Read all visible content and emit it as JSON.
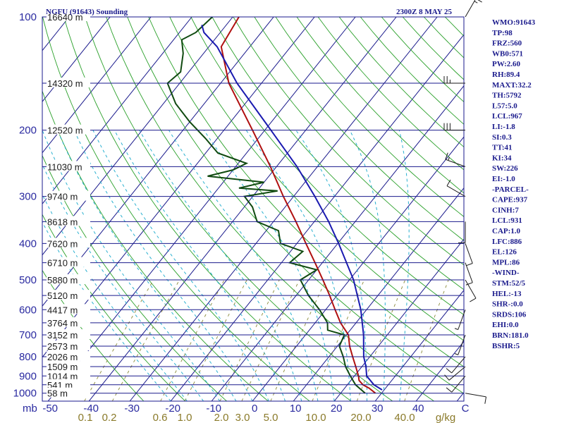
{
  "header": {
    "station": "NGFU (91643) Sounding",
    "time": "2300Z  8 MAY 25"
  },
  "indices": [
    "WMO:91643",
    "TP:98",
    "FRZ:560",
    "WB0:571",
    "PW:2.60",
    "RH:89.4",
    "MAXT:32.2",
    "TH:5792",
    "L57:5.0",
    "LCL:967",
    "LI:-1.8",
    "SI:0.3",
    "TT:41",
    "KI:34",
    "SW:226",
    "EI:-1.0",
    "-PARCEL-",
    "CAPE:937",
    "CINH:7",
    "LCL:931",
    "CAP:1.0",
    "LFC:886",
    "EL:126",
    "MPL:86",
    "-WIND-",
    "STM:52/5",
    "HEL:-13",
    "SHR-:0.0",
    "SRDS:106",
    "EHI:0.0",
    "BRN:181.0",
    "BSHR:5"
  ],
  "colors": {
    "isobar": "#1a1a8c",
    "isotherm": "#1a1a8c",
    "dry_adiabat": "#2aa02a",
    "moist_adiabat": "#2ab0d0",
    "mixing_ratio": "#8a8a3a",
    "temperature": "#b01010",
    "dewpoint": "#104a10",
    "parcel": "#1a1ab0",
    "text": "#1a1a8c"
  },
  "chart_data": {
    "type": "line",
    "title": "NGFU (91643) Sounding",
    "axis_unit_pressure": "mb",
    "axis_unit_mixing_ratio": "g/kg",
    "pressure_levels": [
      100,
      200,
      300,
      400,
      500,
      600,
      700,
      800,
      900,
      1000
    ],
    "temperature_ticks": [
      -50,
      -40,
      -30,
      -20,
      -10,
      0,
      10,
      20,
      30,
      40
    ],
    "temperature_end_label": "C",
    "mixing_ratio_ticks": [
      "0.1",
      "0.2",
      "0.6",
      "1.0",
      "2.0",
      "3.0",
      "5.0",
      "10.0",
      "20.0",
      "40.0"
    ],
    "height_labels": [
      {
        "p": 100,
        "label": "16640 m"
      },
      {
        "p": 150,
        "label": "14320 m"
      },
      {
        "p": 200,
        "label": "12520 m"
      },
      {
        "p": 250,
        "label": "11030 m"
      },
      {
        "p": 300,
        "label": "9740 m"
      },
      {
        "p": 350,
        "label": "8618 m"
      },
      {
        "p": 400,
        "label": "7620 m"
      },
      {
        "p": 450,
        "label": "6710 m"
      },
      {
        "p": 500,
        "label": "5880 m"
      },
      {
        "p": 550,
        "label": "5120 m"
      },
      {
        "p": 600,
        "label": "4417 m"
      },
      {
        "p": 650,
        "label": "3764 m"
      },
      {
        "p": 700,
        "label": "3152 m"
      },
      {
        "p": 750,
        "label": "2573 m"
      },
      {
        "p": 800,
        "label": "2026 m"
      },
      {
        "p": 850,
        "label": "1509 m"
      },
      {
        "p": 900,
        "label": "1014 m"
      },
      {
        "p": 950,
        "label": "541 m"
      },
      {
        "p": 1000,
        "label": "58 m"
      }
    ],
    "series": [
      {
        "points": [
          [
            1000,
            28.5
          ],
          [
            970,
            26.0
          ],
          [
            950,
            23.8
          ],
          [
            925,
            22.0
          ],
          [
            900,
            21.0
          ],
          [
            850,
            18.5
          ],
          [
            800,
            15.8
          ],
          [
            750,
            13.0
          ],
          [
            700,
            10.5
          ],
          [
            650,
            6.2
          ],
          [
            600,
            2.3
          ],
          [
            550,
            -1.8
          ],
          [
            500,
            -6.5
          ],
          [
            450,
            -11.8
          ],
          [
            400,
            -17.8
          ],
          [
            350,
            -24.5
          ],
          [
            300,
            -32.5
          ],
          [
            250,
            -41.5
          ],
          [
            200,
            -53.0
          ],
          [
            150,
            -68.0
          ],
          [
            120,
            -77.0
          ],
          [
            100,
            -78.5
          ]
        ]
      },
      {
        "points": [
          [
            1000,
            26.0
          ],
          [
            950,
            22.0
          ],
          [
            900,
            19.0
          ],
          [
            850,
            16.0
          ],
          [
            800,
            13.5
          ],
          [
            750,
            10.5
          ],
          [
            700,
            9.5
          ],
          [
            680,
            4.5
          ],
          [
            650,
            3.0
          ],
          [
            600,
            -1.5
          ],
          [
            550,
            -7.0
          ],
          [
            500,
            -12.0
          ],
          [
            470,
            -10.0
          ],
          [
            450,
            -18.0
          ],
          [
            420,
            -17.0
          ],
          [
            400,
            -24.0
          ],
          [
            370,
            -27.0
          ],
          [
            350,
            -34.0
          ],
          [
            320,
            -38.0
          ],
          [
            300,
            -42.0
          ],
          [
            290,
            -35.0
          ],
          [
            285,
            -45.0
          ],
          [
            275,
            -40.0
          ],
          [
            265,
            -55.0
          ],
          [
            255,
            -50.0
          ],
          [
            245,
            -48.0
          ],
          [
            230,
            -57.0
          ],
          [
            210,
            -63.0
          ],
          [
            190,
            -70.0
          ],
          [
            170,
            -77.0
          ],
          [
            150,
            -83.0
          ],
          [
            140,
            -82.0
          ],
          [
            125,
            -85.0
          ],
          [
            115,
            -88.0
          ],
          [
            110,
            -86.0
          ],
          [
            100,
            -85.0
          ]
        ]
      },
      {
        "points": [
          [
            980,
            29.5
          ],
          [
            950,
            26.5
          ],
          [
            900,
            23.0
          ],
          [
            850,
            21.0
          ],
          [
            800,
            18.5
          ],
          [
            700,
            14.2
          ],
          [
            600,
            8.6
          ],
          [
            500,
            1.0
          ],
          [
            400,
            -9.8
          ],
          [
            350,
            -16.5
          ],
          [
            300,
            -24.8
          ],
          [
            250,
            -35.0
          ],
          [
            200,
            -48.5
          ],
          [
            150,
            -66.0
          ],
          [
            120,
            -78.0
          ],
          [
            110,
            -84.0
          ],
          [
            105,
            -86.0
          ]
        ]
      }
    ],
    "wind_barbs": [
      {
        "p": 1000,
        "dir": 100,
        "speed": 10
      },
      {
        "p": 900,
        "dir": 220,
        "speed": 10
      },
      {
        "p": 850,
        "dir": 230,
        "speed": 10
      },
      {
        "p": 800,
        "dir": 220,
        "speed": 10
      },
      {
        "p": 700,
        "dir": 200,
        "speed": 5
      },
      {
        "p": 600,
        "dir": 200,
        "speed": 5
      },
      {
        "p": 500,
        "dir": 150,
        "speed": 10
      },
      {
        "p": 450,
        "dir": 160,
        "speed": 10
      },
      {
        "p": 400,
        "dir": 160,
        "speed": 10
      },
      {
        "p": 350,
        "dir": 180,
        "speed": 10
      },
      {
        "p": 300,
        "dir": 300,
        "speed": 10
      },
      {
        "p": 250,
        "dir": 290,
        "speed": 15
      },
      {
        "p": 200,
        "dir": 270,
        "speed": 30
      },
      {
        "p": 150,
        "dir": 270,
        "speed": 25
      },
      {
        "p": 100,
        "dir": 30,
        "speed": 15
      }
    ]
  }
}
